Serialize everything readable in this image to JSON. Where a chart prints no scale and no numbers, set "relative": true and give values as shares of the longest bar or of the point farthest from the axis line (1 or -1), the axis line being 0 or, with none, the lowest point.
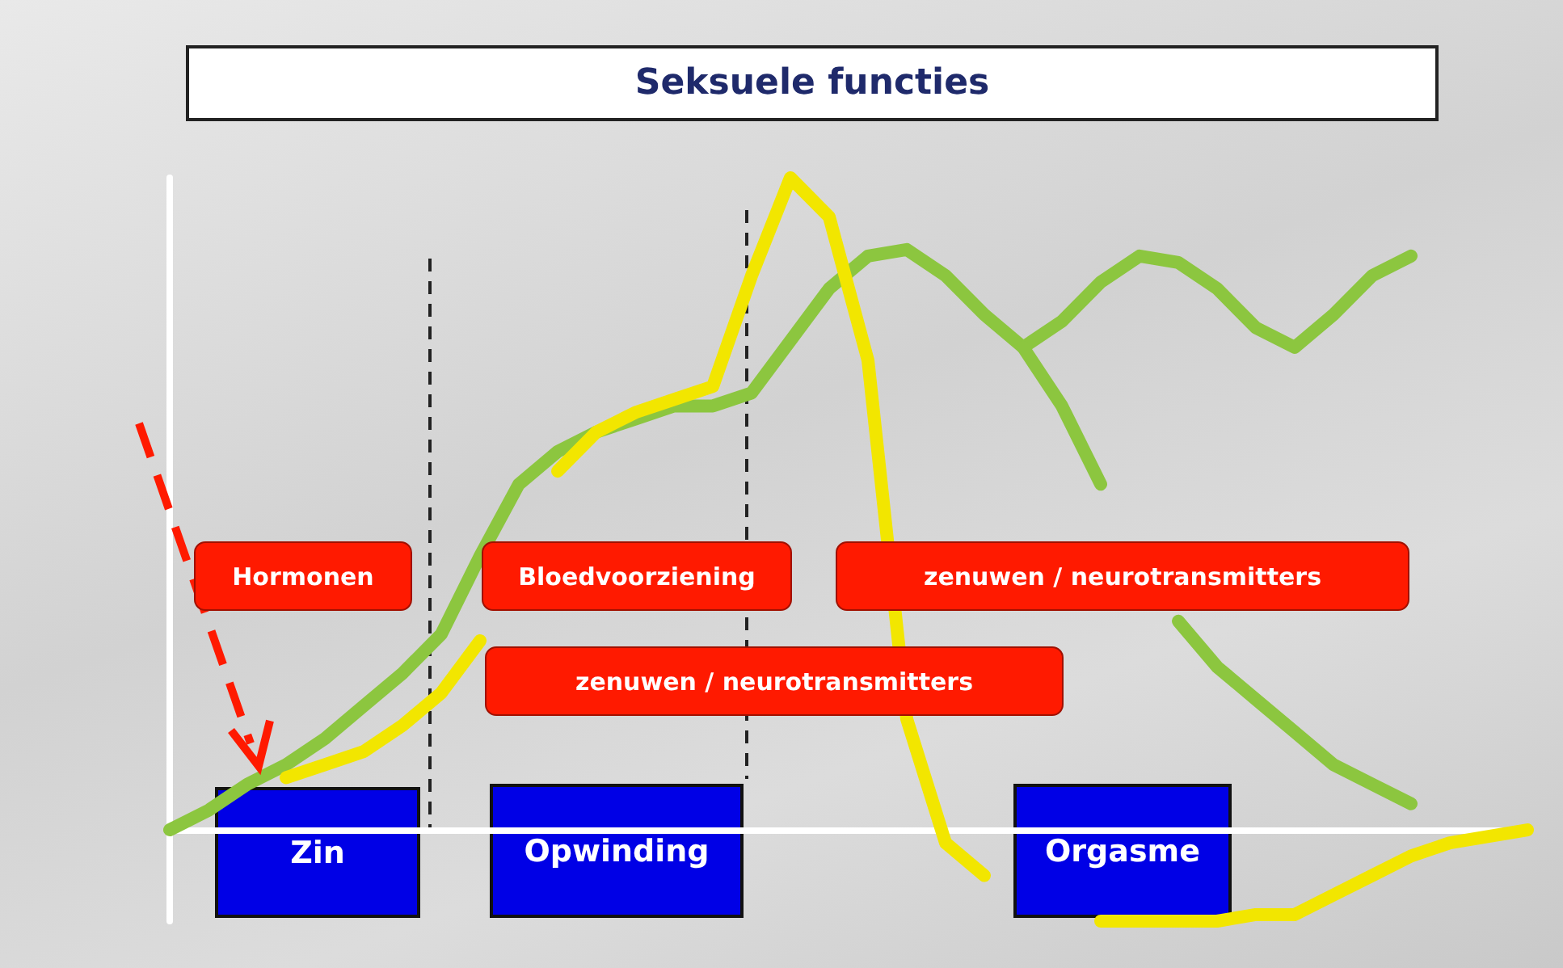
{
  "chart_data": {
    "type": "line",
    "title": "Seksuele functies",
    "relative": true,
    "marker": "none",
    "line_style": "solid",
    "categories": [
      null,
      null,
      null,
      null,
      null,
      null,
      null,
      null,
      null,
      null,
      null,
      null,
      null,
      null,
      null,
      null,
      null,
      null,
      null,
      null,
      null,
      null,
      null,
      null,
      null,
      null,
      null,
      null,
      null,
      null,
      null,
      null,
      null,
      null,
      null,
      null
    ],
    "series": [
      {
        "color": "#8cc63f",
        "values": [
          0.0,
          0.03,
          0.07,
          0.1,
          0.14,
          0.19,
          0.24,
          0.3,
          0.42,
          0.53,
          0.58,
          0.61,
          0.63,
          0.65,
          0.65,
          0.67,
          0.75,
          0.83,
          0.88,
          0.89,
          0.85,
          0.79,
          0.74,
          0.78,
          0.84,
          0.88,
          0.87,
          0.83,
          0.77,
          0.74,
          0.79,
          0.85,
          0.88,
          null,
          null,
          null
        ]
      },
      {
        "color": "#8cc63f",
        "values": [
          null,
          null,
          null,
          null,
          null,
          null,
          null,
          null,
          null,
          null,
          null,
          null,
          null,
          null,
          null,
          null,
          null,
          null,
          null,
          null,
          null,
          null,
          0.74,
          0.65,
          0.53,
          null,
          0.32,
          0.25,
          0.2,
          0.15,
          0.1,
          0.07,
          0.04,
          null,
          null,
          null
        ]
      },
      {
        "color": "#f2e600",
        "values": [
          null,
          null,
          null,
          0.08,
          0.1,
          0.12,
          0.16,
          0.21,
          0.29,
          null,
          0.55,
          0.61,
          0.64,
          0.66,
          0.68,
          0.85,
          1.0,
          0.94,
          0.72,
          0.17,
          -0.02,
          -0.07,
          null,
          null,
          -0.14,
          -0.14,
          -0.14,
          -0.14,
          -0.13,
          -0.13,
          -0.1,
          -0.07,
          -0.04,
          -0.02,
          -0.01,
          0.0
        ]
      }
    ],
    "annotations": [
      "Hormonen",
      "Bloedvoorziening",
      "zenuwen / neurotransmitters",
      "zenuwen / neurotransmitters",
      "Zin",
      "Opwinding",
      "Orgasme"
    ]
  }
}
